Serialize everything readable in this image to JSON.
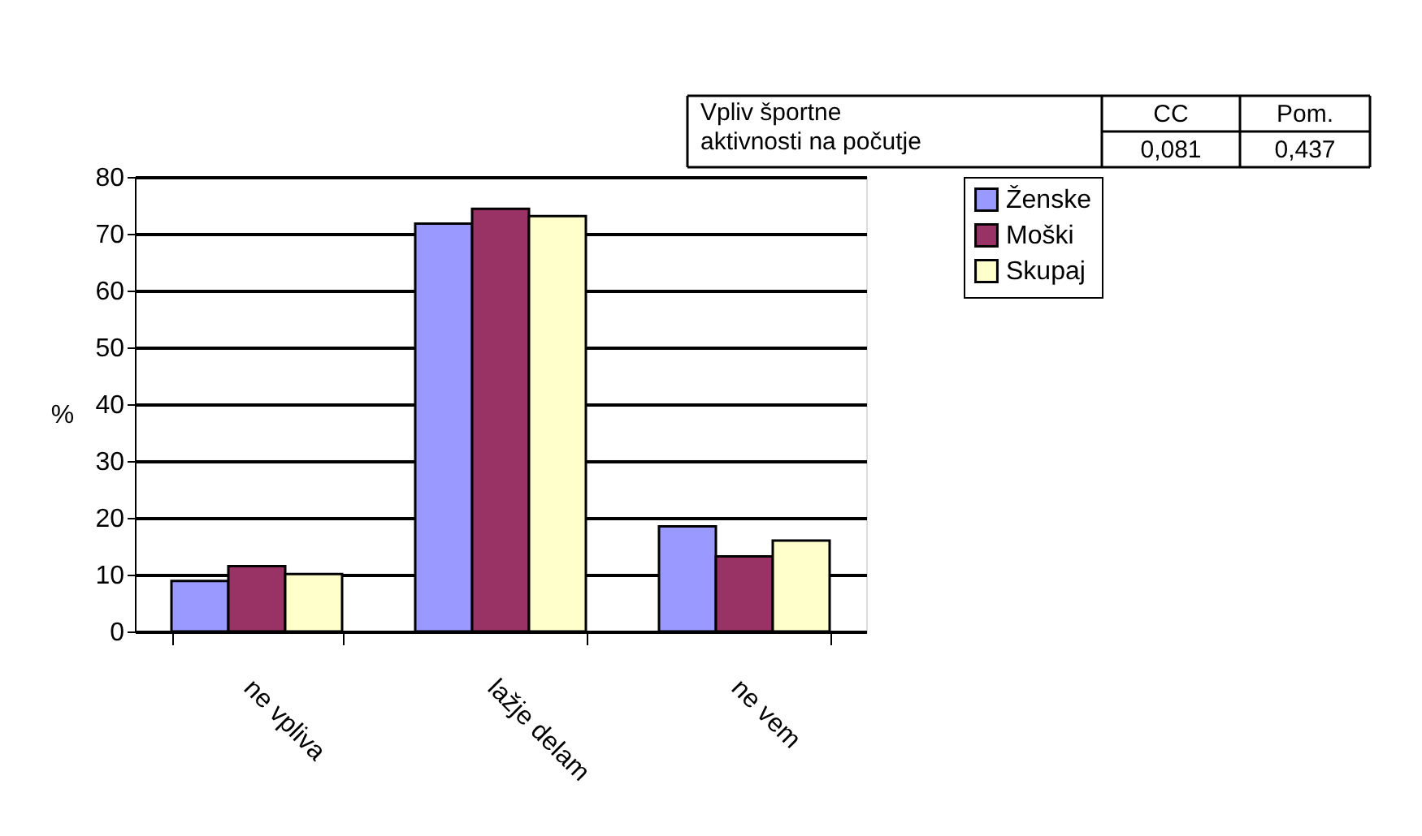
{
  "chart_data": {
    "type": "bar",
    "ylabel": "%",
    "categories": [
      "ne vpliva",
      "lažje delam",
      "ne vem"
    ],
    "series": [
      {
        "name": "Ženske",
        "color": "#9999ff",
        "values": [
          8.9,
          71.8,
          18.5
        ]
      },
      {
        "name": "Moški",
        "color": "#993366",
        "values": [
          11.5,
          74.4,
          13.2
        ]
      },
      {
        "name": "Skupaj",
        "color": "#ffffcc",
        "values": [
          10.1,
          73.1,
          16.0
        ]
      }
    ],
    "ylim": [
      0,
      80
    ],
    "yticks": [
      0,
      10,
      20,
      30,
      40,
      50,
      60,
      70,
      80
    ],
    "grid": "y",
    "legend": "right",
    "annotations": [
      "Vpliv športne\naktivnosti na počutje",
      "CC",
      "Pom.",
      "0,081",
      "0,437"
    ]
  }
}
